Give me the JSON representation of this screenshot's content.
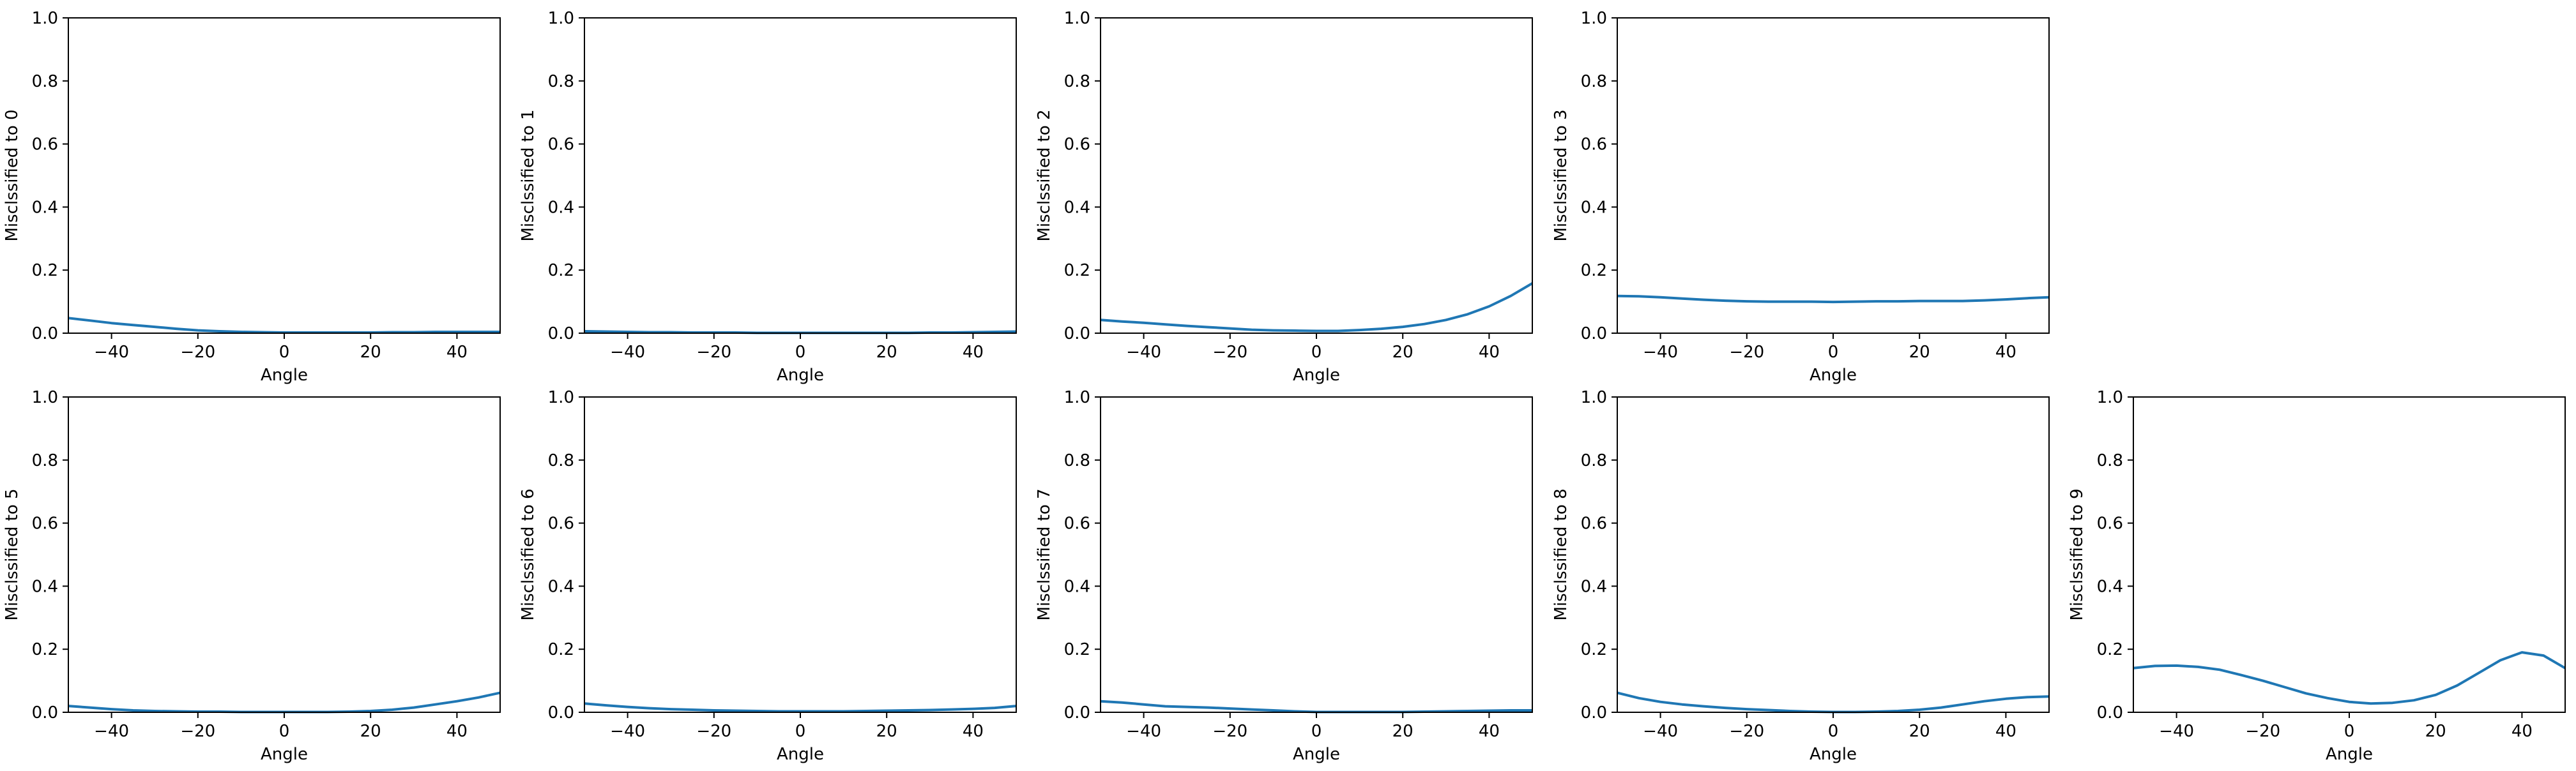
{
  "chart_data": [
    {
      "type": "line",
      "xlabel": "Angle",
      "ylabel": "Misclssified to 0",
      "xlim": [
        -50,
        50
      ],
      "ylim": [
        0,
        1
      ],
      "xticks": [
        -40,
        -20,
        0,
        20,
        40
      ],
      "yticks": [
        0.0,
        0.2,
        0.4,
        0.6,
        0.8,
        1.0
      ],
      "x": [
        -50,
        -45,
        -40,
        -35,
        -30,
        -25,
        -20,
        -15,
        -10,
        -5,
        0,
        5,
        10,
        15,
        20,
        25,
        30,
        35,
        40,
        45,
        50
      ],
      "y": [
        0.048,
        0.04,
        0.032,
        0.026,
        0.02,
        0.014,
        0.009,
        0.006,
        0.004,
        0.003,
        0.002,
        0.002,
        0.002,
        0.002,
        0.002,
        0.003,
        0.003,
        0.004,
        0.004,
        0.004,
        0.004
      ]
    },
    {
      "type": "line",
      "xlabel": "Angle",
      "ylabel": "Misclssified to 1",
      "xlim": [
        -50,
        50
      ],
      "ylim": [
        0,
        1
      ],
      "xticks": [
        -40,
        -20,
        0,
        20,
        40
      ],
      "yticks": [
        0.0,
        0.2,
        0.4,
        0.6,
        0.8,
        1.0
      ],
      "x": [
        -50,
        -45,
        -40,
        -35,
        -30,
        -25,
        -20,
        -15,
        -10,
        -5,
        0,
        5,
        10,
        15,
        20,
        25,
        30,
        35,
        40,
        45,
        50
      ],
      "y": [
        0.006,
        0.005,
        0.004,
        0.003,
        0.003,
        0.002,
        0.002,
        0.002,
        0.001,
        0.001,
        0.001,
        0.001,
        0.001,
        0.001,
        0.001,
        0.001,
        0.002,
        0.002,
        0.003,
        0.004,
        0.005
      ]
    },
    {
      "type": "line",
      "xlabel": "Angle",
      "ylabel": "Misclssified to 2",
      "xlim": [
        -50,
        50
      ],
      "ylim": [
        0,
        1
      ],
      "xticks": [
        -40,
        -20,
        0,
        20,
        40
      ],
      "yticks": [
        0.0,
        0.2,
        0.4,
        0.6,
        0.8,
        1.0
      ],
      "x": [
        -50,
        -45,
        -40,
        -35,
        -30,
        -25,
        -20,
        -15,
        -10,
        -5,
        0,
        5,
        10,
        15,
        20,
        25,
        30,
        35,
        40,
        45,
        50
      ],
      "y": [
        0.042,
        0.037,
        0.033,
        0.028,
        0.023,
        0.019,
        0.015,
        0.011,
        0.009,
        0.008,
        0.007,
        0.007,
        0.01,
        0.014,
        0.02,
        0.029,
        0.042,
        0.06,
        0.085,
        0.118,
        0.158
      ]
    },
    {
      "type": "line",
      "xlabel": "Angle",
      "ylabel": "Misclssified to 3",
      "xlim": [
        -50,
        50
      ],
      "ylim": [
        0,
        1
      ],
      "xticks": [
        -40,
        -20,
        0,
        20,
        40
      ],
      "yticks": [
        0.0,
        0.2,
        0.4,
        0.6,
        0.8,
        1.0
      ],
      "x": [
        -50,
        -45,
        -40,
        -35,
        -30,
        -25,
        -20,
        -15,
        -10,
        -5,
        0,
        5,
        10,
        15,
        20,
        25,
        30,
        35,
        40,
        45,
        50
      ],
      "y": [
        0.118,
        0.117,
        0.114,
        0.11,
        0.106,
        0.103,
        0.101,
        0.1,
        0.1,
        0.1,
        0.099,
        0.1,
        0.101,
        0.101,
        0.102,
        0.102,
        0.102,
        0.104,
        0.107,
        0.111,
        0.114
      ]
    },
    {
      "type": "line",
      "xlabel": "Angle",
      "ylabel": "Misclssified to 5",
      "xlim": [
        -50,
        50
      ],
      "ylim": [
        0,
        1
      ],
      "xticks": [
        -40,
        -20,
        0,
        20,
        40
      ],
      "yticks": [
        0.0,
        0.2,
        0.4,
        0.6,
        0.8,
        1.0
      ],
      "x": [
        -50,
        -45,
        -40,
        -35,
        -30,
        -25,
        -20,
        -15,
        -10,
        -5,
        0,
        5,
        10,
        15,
        20,
        25,
        30,
        35,
        40,
        45,
        50
      ],
      "y": [
        0.02,
        0.015,
        0.01,
        0.006,
        0.004,
        0.003,
        0.002,
        0.002,
        0.001,
        0.001,
        0.001,
        0.001,
        0.001,
        0.002,
        0.004,
        0.008,
        0.015,
        0.025,
        0.035,
        0.047,
        0.062
      ]
    },
    {
      "type": "line",
      "xlabel": "Angle",
      "ylabel": "Misclssified to 6",
      "xlim": [
        -50,
        50
      ],
      "ylim": [
        0,
        1
      ],
      "xticks": [
        -40,
        -20,
        0,
        20,
        40
      ],
      "yticks": [
        0.0,
        0.2,
        0.4,
        0.6,
        0.8,
        1.0
      ],
      "x": [
        -50,
        -45,
        -40,
        -35,
        -30,
        -25,
        -20,
        -15,
        -10,
        -5,
        0,
        5,
        10,
        15,
        20,
        25,
        30,
        35,
        40,
        45,
        50
      ],
      "y": [
        0.028,
        0.022,
        0.017,
        0.013,
        0.01,
        0.008,
        0.006,
        0.005,
        0.004,
        0.003,
        0.003,
        0.003,
        0.003,
        0.004,
        0.005,
        0.006,
        0.007,
        0.009,
        0.011,
        0.014,
        0.02
      ]
    },
    {
      "type": "line",
      "xlabel": "Angle",
      "ylabel": "Misclssified to 7",
      "xlim": [
        -50,
        50
      ],
      "ylim": [
        0,
        1
      ],
      "xticks": [
        -40,
        -20,
        0,
        20,
        40
      ],
      "yticks": [
        0.0,
        0.2,
        0.4,
        0.6,
        0.8,
        1.0
      ],
      "x": [
        -50,
        -45,
        -40,
        -35,
        -30,
        -25,
        -20,
        -15,
        -10,
        -5,
        0,
        5,
        10,
        15,
        20,
        25,
        30,
        35,
        40,
        45,
        50
      ],
      "y": [
        0.035,
        0.031,
        0.025,
        0.019,
        0.017,
        0.015,
        0.012,
        0.009,
        0.006,
        0.003,
        0.001,
        0.001,
        0.001,
        0.001,
        0.001,
        0.002,
        0.003,
        0.004,
        0.005,
        0.006,
        0.006
      ]
    },
    {
      "type": "line",
      "xlabel": "Angle",
      "ylabel": "Misclssified to 8",
      "xlim": [
        -50,
        50
      ],
      "ylim": [
        0,
        1
      ],
      "xticks": [
        -40,
        -20,
        0,
        20,
        40
      ],
      "yticks": [
        0.0,
        0.2,
        0.4,
        0.6,
        0.8,
        1.0
      ],
      "x": [
        -50,
        -45,
        -40,
        -35,
        -30,
        -25,
        -20,
        -15,
        -10,
        -5,
        0,
        5,
        10,
        15,
        20,
        25,
        30,
        35,
        40,
        45,
        50
      ],
      "y": [
        0.062,
        0.045,
        0.033,
        0.025,
        0.019,
        0.014,
        0.01,
        0.007,
        0.004,
        0.002,
        0.001,
        0.001,
        0.002,
        0.004,
        0.008,
        0.015,
        0.025,
        0.035,
        0.043,
        0.048,
        0.05
      ]
    },
    {
      "type": "line",
      "xlabel": "Angle",
      "ylabel": "Misclssified to 9",
      "xlim": [
        -50,
        50
      ],
      "ylim": [
        0,
        1
      ],
      "xticks": [
        -40,
        -20,
        0,
        20,
        40
      ],
      "yticks": [
        0.0,
        0.2,
        0.4,
        0.6,
        0.8,
        1.0
      ],
      "x": [
        -50,
        -45,
        -40,
        -35,
        -30,
        -25,
        -20,
        -15,
        -10,
        -5,
        0,
        5,
        10,
        15,
        20,
        25,
        30,
        35,
        40,
        45,
        50
      ],
      "y": [
        0.14,
        0.147,
        0.148,
        0.144,
        0.135,
        0.118,
        0.1,
        0.08,
        0.06,
        0.045,
        0.033,
        0.028,
        0.03,
        0.038,
        0.055,
        0.085,
        0.125,
        0.165,
        0.19,
        0.18,
        0.14
      ]
    }
  ],
  "colors": {
    "line": "#1f77b4",
    "axes": "#000000",
    "background": "#ffffff"
  }
}
